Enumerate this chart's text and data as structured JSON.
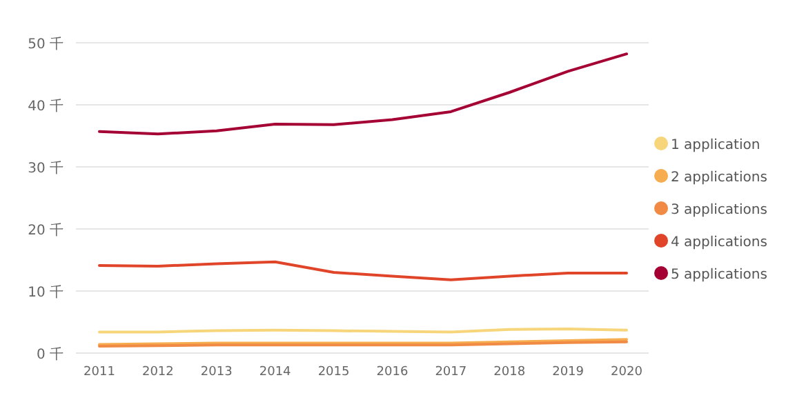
{
  "chart_data": {
    "type": "line",
    "categories": [
      "2011",
      "2012",
      "2013",
      "2014",
      "2015",
      "2016",
      "2017",
      "2018",
      "2019",
      "2020"
    ],
    "series": [
      {
        "name": "1 application",
        "color": "#f7d57a",
        "values": [
          3.4,
          3.4,
          3.6,
          3.7,
          3.6,
          3.5,
          3.4,
          3.8,
          3.9,
          3.7
        ]
      },
      {
        "name": "2 applications",
        "color": "#f6ad4f",
        "values": [
          1.4,
          1.5,
          1.6,
          1.6,
          1.6,
          1.6,
          1.6,
          1.8,
          2.0,
          2.2
        ]
      },
      {
        "name": "3 applications",
        "color": "#f08a45",
        "values": [
          1.1,
          1.2,
          1.3,
          1.3,
          1.3,
          1.3,
          1.3,
          1.5,
          1.7,
          1.8
        ]
      },
      {
        "name": "4 applications",
        "color": "#e0452a",
        "values": [
          14.1,
          14.0,
          14.4,
          14.7,
          13.0,
          12.4,
          11.8,
          12.4,
          12.9,
          12.9
        ]
      },
      {
        "name": "5 applications",
        "color": "#a50034",
        "values": [
          35.7,
          35.3,
          35.8,
          36.9,
          36.8,
          37.6,
          38.9,
          42.0,
          45.4,
          48.2
        ]
      }
    ],
    "ylim": [
      0,
      50
    ],
    "yticks": [
      {
        "value": 0,
        "label": "0 千"
      },
      {
        "value": 10,
        "label": "10 千"
      },
      {
        "value": 20,
        "label": "20 千"
      },
      {
        "value": 30,
        "label": "30 千"
      },
      {
        "value": 40,
        "label": "40 千"
      },
      {
        "value": 50,
        "label": "50 千"
      }
    ],
    "grid": "y",
    "legend": "right",
    "marker": "none",
    "line_style": "solid"
  }
}
